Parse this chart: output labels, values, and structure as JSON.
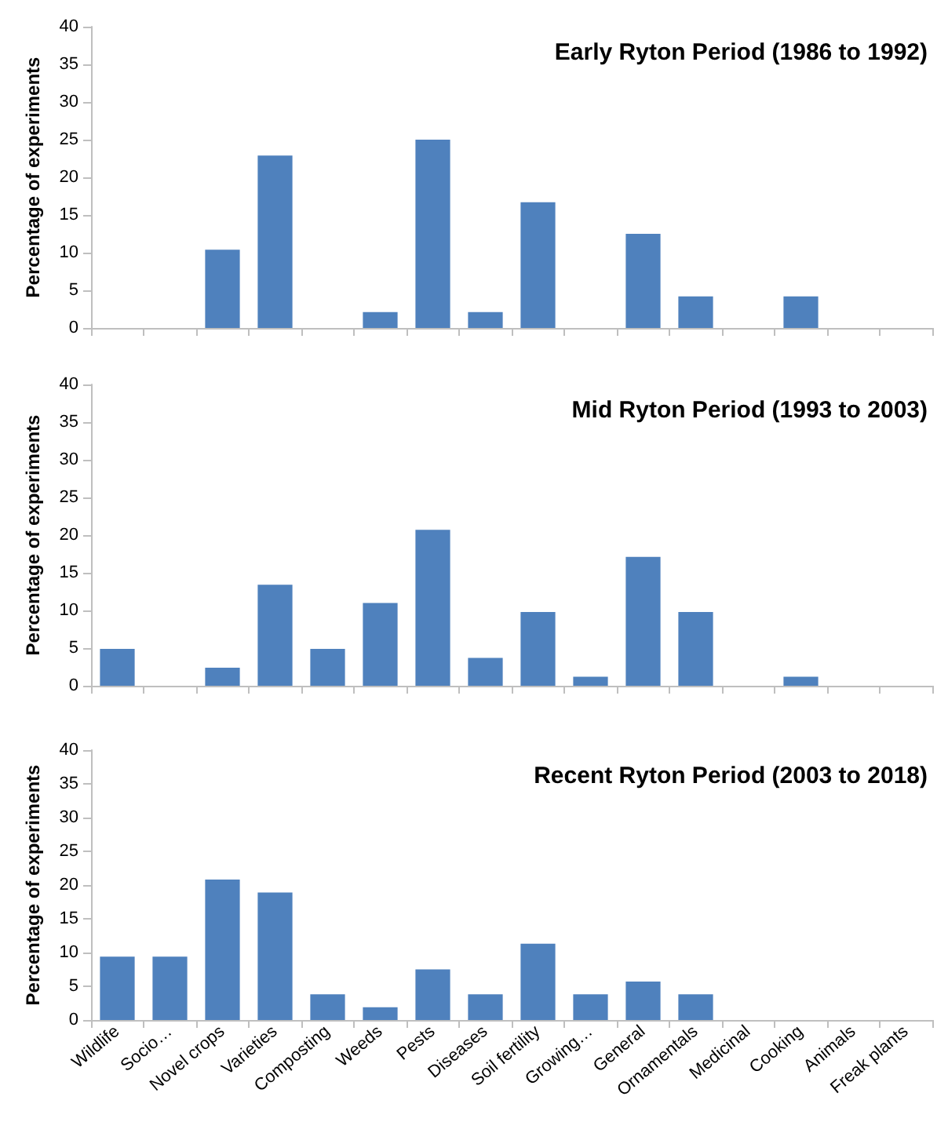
{
  "chart_data": [
    {
      "type": "bar",
      "title": "Early Ryton Period (1986 to 1992)",
      "ylabel": "Percentage of experiments",
      "categories": [
        null,
        null,
        null,
        null,
        null,
        null,
        null,
        null,
        null,
        null,
        null,
        null,
        null,
        null,
        null,
        null
      ],
      "values": [
        0,
        0,
        10.4,
        22.9,
        0,
        2.1,
        25,
        2.1,
        16.7,
        0,
        12.5,
        4.2,
        0,
        4.2,
        0,
        0
      ],
      "color": "#4f81bd",
      "ylim": [
        0,
        40
      ],
      "yticks": [
        0,
        5,
        10,
        15,
        20,
        25,
        30,
        35,
        40
      ],
      "grid": false,
      "tick_labels": "y"
    },
    {
      "type": "bar",
      "title": "Mid Ryton Period (1993 to 2003)",
      "ylabel": "Percentage of experiments",
      "categories": [
        null,
        null,
        null,
        null,
        null,
        null,
        null,
        null,
        null,
        null,
        null,
        null,
        null,
        null,
        null,
        null
      ],
      "values": [
        4.9,
        0,
        2.4,
        13.4,
        4.9,
        11,
        20.7,
        3.7,
        9.8,
        1.2,
        17.1,
        9.8,
        0,
        1.2,
        0,
        0
      ],
      "color": "#4f81bd",
      "ylim": [
        0,
        40
      ],
      "yticks": [
        0,
        5,
        10,
        15,
        20,
        25,
        30,
        35,
        40
      ],
      "grid": false,
      "tick_labels": "y"
    },
    {
      "type": "bar",
      "title": "Recent Ryton Period (2003 to 2018)",
      "ylabel": "Percentage of experiments",
      "categories": [
        "Wildlife",
        "Socio…",
        "Novel crops",
        "Varieties",
        "Composting",
        "Weeds",
        "Pests",
        "Diseases",
        "Soil fertility",
        "Growing…",
        "General",
        "Ornamentals",
        "Medicinal",
        "Cooking",
        "Animals",
        "Freak plants"
      ],
      "values": [
        9.4,
        9.4,
        20.8,
        18.9,
        3.8,
        1.9,
        7.5,
        3.8,
        11.3,
        3.8,
        5.7,
        3.8,
        0,
        0,
        0,
        0
      ],
      "color": "#4f81bd",
      "ylim": [
        0,
        40
      ],
      "yticks": [
        0,
        5,
        10,
        15,
        20,
        25,
        30,
        35,
        40
      ],
      "grid": false
    }
  ]
}
